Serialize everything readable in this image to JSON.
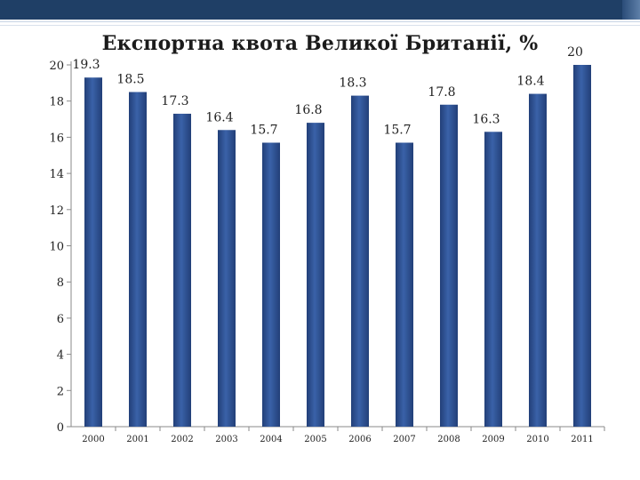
{
  "theme": {
    "bar_color": "#3a62a8",
    "bar_dark": "#223f78",
    "band_color": "#1f3f66"
  },
  "chart_data": {
    "type": "bar",
    "title": "Експортна квота Великої Британії, %",
    "xlabel": "",
    "ylabel": "",
    "categories": [
      "2000",
      "2001",
      "2002",
      "2003",
      "2004",
      "2005",
      "2006",
      "2007",
      "2008",
      "2009",
      "2010",
      "2011"
    ],
    "values": [
      19.3,
      18.5,
      17.3,
      16.4,
      15.7,
      16.8,
      18.3,
      15.7,
      17.8,
      16.3,
      18.4,
      20
    ],
    "value_labels": [
      "19.3",
      "18.5",
      "17.3",
      "16.4",
      "15.7",
      "16.8",
      "18.3",
      "15.7",
      "17.8",
      "16.3",
      "18.4",
      "20"
    ],
    "ylim": [
      0,
      20
    ],
    "yticks": [
      0,
      2,
      4,
      6,
      8,
      10,
      12,
      14,
      16,
      18,
      20
    ],
    "grid": false,
    "legend": "none"
  }
}
